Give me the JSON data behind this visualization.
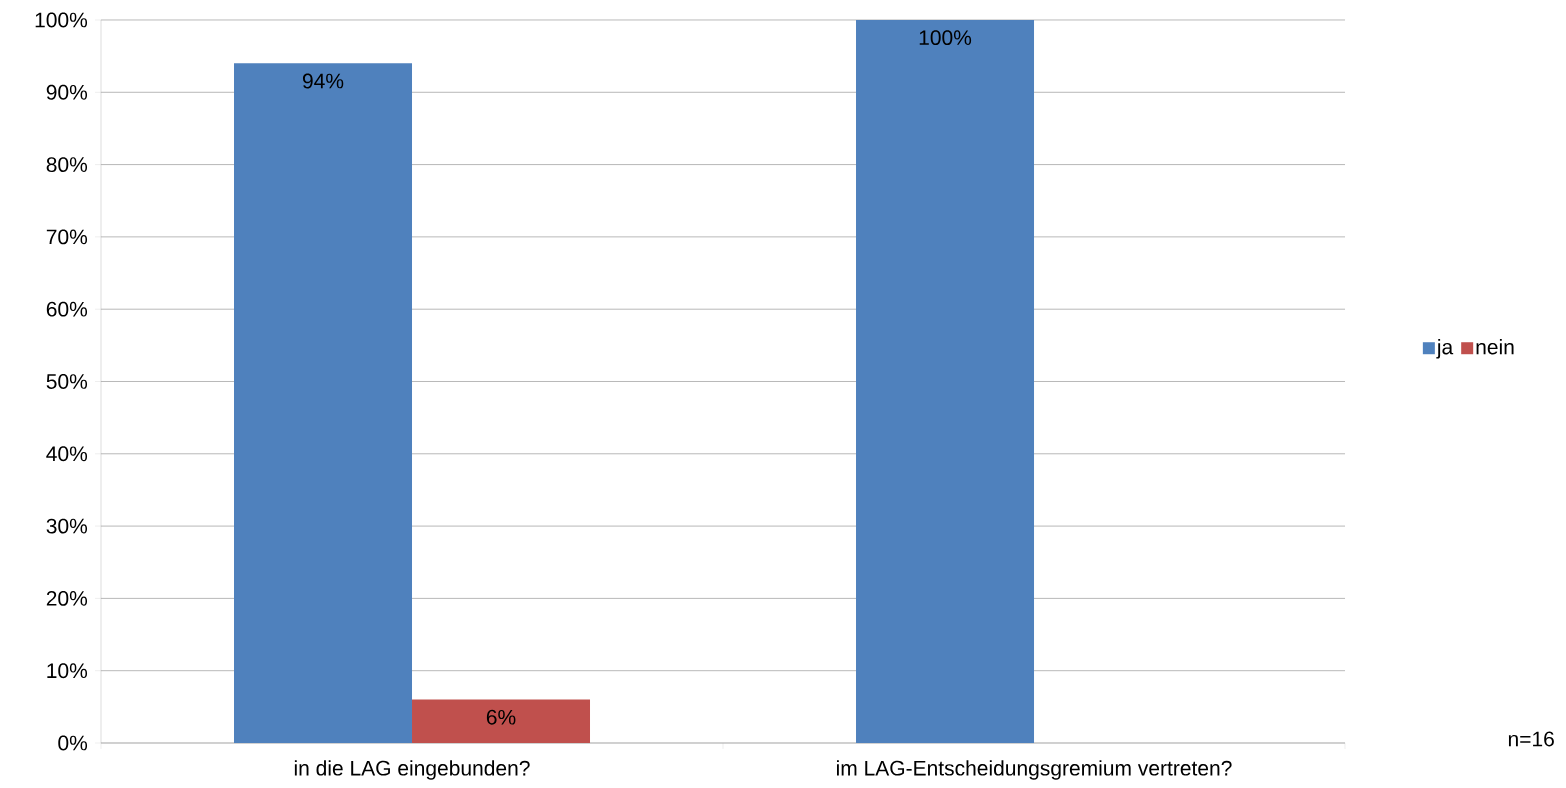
{
  "chart_data": {
    "type": "bar",
    "categories": [
      "in die LAG eingebunden?",
      "im LAG-Entscheidungsgremium vertreten?"
    ],
    "series": [
      {
        "name": "ja",
        "color": "#4f81bd",
        "values": [
          94,
          100
        ],
        "value_labels": [
          "94%",
          "100%"
        ]
      },
      {
        "name": "nein",
        "color": "#c0504d",
        "values": [
          6,
          null
        ],
        "value_labels": [
          "6%",
          null
        ]
      }
    ],
    "ylim": [
      0,
      100
    ],
    "yticks": [
      {
        "value": 0,
        "label": "0%"
      },
      {
        "value": 10,
        "label": "10%"
      },
      {
        "value": 20,
        "label": "20%"
      },
      {
        "value": 30,
        "label": "30%"
      },
      {
        "value": 40,
        "label": "40%"
      },
      {
        "value": 50,
        "label": "50%"
      },
      {
        "value": 60,
        "label": "60%"
      },
      {
        "value": 70,
        "label": "70%"
      },
      {
        "value": 80,
        "label": "80%"
      },
      {
        "value": 90,
        "label": "90%"
      },
      {
        "value": 100,
        "label": "100%"
      }
    ],
    "grid": "y",
    "legend": "right",
    "annotations": [
      "n=16"
    ]
  }
}
